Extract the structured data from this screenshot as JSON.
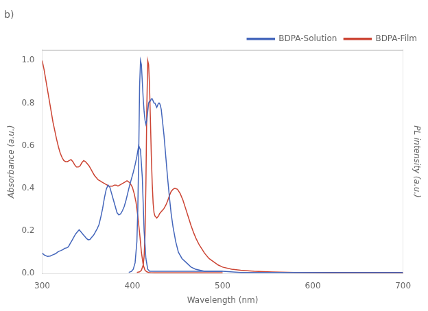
{
  "chart_data": {
    "type": "line",
    "title": "b)",
    "xlabel": "Wavelength (nm)",
    "ylabel": "Absorbance (a.u.)",
    "y2label": "PL intensity (a.u.)",
    "xlim": [
      300,
      700
    ],
    "ylim": [
      0,
      1.05
    ],
    "xticks": [
      300,
      400,
      500,
      600,
      700
    ],
    "yticks": [
      {
        "value": 0,
        "label": "0.0"
      },
      0.2,
      0.4,
      0.6,
      0.8,
      {
        "value": 1,
        "label": "1.0"
      }
    ],
    "grid": false,
    "legend": "upper right",
    "series": [
      {
        "name": "BDPA-Solution",
        "color": "#4466bb",
        "x": [
          300,
          303,
          306,
          309,
          312,
          315,
          317,
          319,
          321,
          323,
          325,
          327,
          329,
          331,
          333,
          335,
          337,
          339,
          341,
          343,
          345,
          347,
          349,
          351,
          353,
          355,
          357,
          359,
          361,
          363,
          365,
          367,
          369,
          371,
          373,
          375,
          377,
          379,
          381,
          383,
          385,
          387,
          389,
          391,
          393,
          395,
          397,
          399,
          401,
          403,
          405,
          407,
          409,
          411,
          413,
          415,
          417,
          419,
          421,
          425,
          430,
          440,
          460,
          480,
          500
        ],
        "values": [
          0.095,
          0.085,
          0.08,
          0.082,
          0.088,
          0.093,
          0.1,
          0.105,
          0.108,
          0.112,
          0.118,
          0.12,
          0.125,
          0.14,
          0.155,
          0.17,
          0.185,
          0.195,
          0.205,
          0.195,
          0.185,
          0.175,
          0.165,
          0.158,
          0.16,
          0.17,
          0.18,
          0.195,
          0.21,
          0.23,
          0.265,
          0.305,
          0.355,
          0.395,
          0.415,
          0.405,
          0.375,
          0.345,
          0.315,
          0.285,
          0.275,
          0.28,
          0.295,
          0.315,
          0.345,
          0.38,
          0.415,
          0.445,
          0.475,
          0.51,
          0.55,
          0.6,
          0.58,
          0.45,
          0.2,
          0.07,
          0.02,
          0.01,
          0.01,
          0.01,
          0.01,
          0.01,
          0.01,
          0.01,
          0.01
        ]
      },
      {
        "name": "BDPA-Solution",
        "color": "#4466bb",
        "x": [
          396,
          399,
          401,
          403,
          405,
          406,
          407,
          408,
          409,
          410,
          411,
          412,
          413,
          414,
          415,
          416,
          417,
          418,
          419,
          420,
          421,
          422,
          423,
          424,
          425,
          426,
          427,
          428,
          429,
          430,
          431,
          432,
          433,
          435,
          437,
          439,
          441,
          443,
          445,
          448,
          451,
          455,
          460,
          465,
          470,
          475,
          480,
          490,
          500,
          520,
          550,
          580,
          620,
          660,
          700
        ],
        "values": [
          0.005,
          0.01,
          0.02,
          0.05,
          0.15,
          0.3,
          0.55,
          0.88,
          1.0,
          0.98,
          0.9,
          0.82,
          0.76,
          0.72,
          0.7,
          0.72,
          0.76,
          0.8,
          0.81,
          0.81,
          0.82,
          0.82,
          0.81,
          0.8,
          0.8,
          0.79,
          0.78,
          0.79,
          0.8,
          0.8,
          0.79,
          0.77,
          0.73,
          0.65,
          0.55,
          0.45,
          0.36,
          0.28,
          0.22,
          0.15,
          0.1,
          0.07,
          0.05,
          0.03,
          0.02,
          0.015,
          0.01,
          0.01,
          0.01,
          0.005,
          0.005,
          0.005,
          0.005,
          0.005,
          0.005
        ]
      },
      {
        "name": "BDPA-Film",
        "color": "#cc4433",
        "x": [
          300,
          302,
          304,
          306,
          308,
          310,
          312,
          314,
          316,
          318,
          320,
          322,
          324,
          326,
          328,
          330,
          332,
          334,
          336,
          338,
          340,
          342,
          344,
          346,
          348,
          350,
          352,
          354,
          356,
          358,
          360,
          362,
          364,
          366,
          368,
          370,
          372,
          374,
          376,
          378,
          380,
          382,
          384,
          386,
          388,
          390,
          392,
          394,
          396,
          398,
          400,
          402,
          404,
          406,
          408,
          410,
          412,
          414,
          416,
          418,
          420,
          425,
          430,
          440,
          460,
          480,
          500
        ],
        "values": [
          1.0,
          0.96,
          0.91,
          0.86,
          0.81,
          0.76,
          0.71,
          0.67,
          0.63,
          0.595,
          0.565,
          0.545,
          0.53,
          0.525,
          0.525,
          0.53,
          0.535,
          0.525,
          0.51,
          0.5,
          0.5,
          0.505,
          0.52,
          0.53,
          0.525,
          0.515,
          0.505,
          0.49,
          0.475,
          0.46,
          0.45,
          0.44,
          0.435,
          0.43,
          0.425,
          0.42,
          0.415,
          0.41,
          0.41,
          0.41,
          0.415,
          0.415,
          0.41,
          0.415,
          0.42,
          0.425,
          0.43,
          0.435,
          0.43,
          0.42,
          0.405,
          0.375,
          0.335,
          0.27,
          0.19,
          0.1,
          0.04,
          0.015,
          0.008,
          0.005,
          0.004,
          0.003,
          0.003,
          0.003,
          0.003,
          0.003,
          0.003
        ]
      },
      {
        "name": "BDPA-Film",
        "color": "#cc4433",
        "x": [
          405,
          408,
          410,
          412,
          413,
          414,
          415,
          416,
          417,
          418,
          419,
          420,
          421,
          422,
          423,
          424,
          425,
          426,
          427,
          428,
          429,
          430,
          431,
          432,
          433,
          434,
          435,
          437,
          439,
          441,
          443,
          445,
          447,
          450,
          453,
          456,
          459,
          462,
          465,
          468,
          471,
          474,
          477,
          480,
          485,
          490,
          495,
          500,
          510,
          520,
          535,
          555,
          580,
          620,
          660,
          700
        ],
        "values": [
          0.005,
          0.008,
          0.015,
          0.04,
          0.08,
          0.18,
          0.42,
          0.78,
          1.0,
          0.98,
          0.88,
          0.72,
          0.55,
          0.42,
          0.33,
          0.285,
          0.27,
          0.265,
          0.26,
          0.265,
          0.27,
          0.28,
          0.285,
          0.29,
          0.295,
          0.3,
          0.305,
          0.32,
          0.34,
          0.365,
          0.385,
          0.395,
          0.4,
          0.395,
          0.375,
          0.345,
          0.305,
          0.265,
          0.225,
          0.19,
          0.16,
          0.135,
          0.115,
          0.095,
          0.07,
          0.055,
          0.04,
          0.03,
          0.02,
          0.015,
          0.01,
          0.007,
          0.005,
          0.003,
          0.003,
          0.003
        ]
      }
    ]
  }
}
